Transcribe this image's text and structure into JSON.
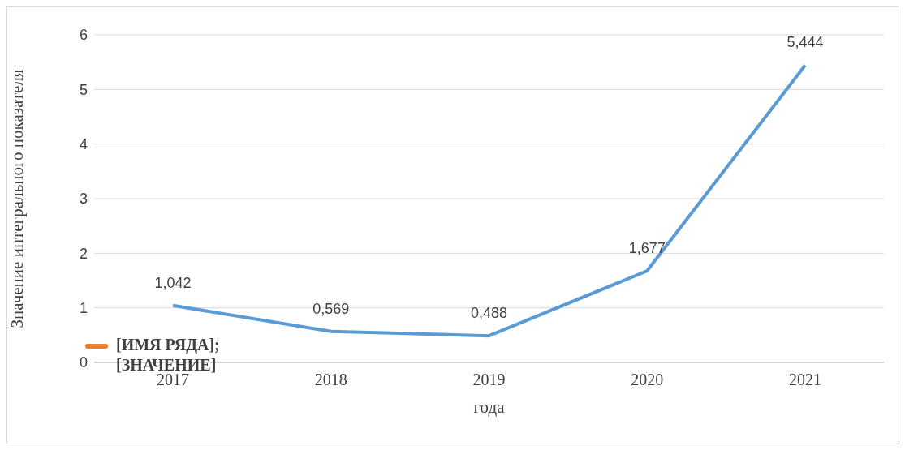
{
  "chart_data": {
    "type": "line",
    "xlabel": "года",
    "ylabel": "Значение интегрального показателя",
    "categories": [
      "2017",
      "2018",
      "2019",
      "2020",
      "2021"
    ],
    "series": [
      {
        "color": "#5b9bd5",
        "values": [
          1.042,
          0.569,
          0.488,
          1.677,
          5.444
        ]
      }
    ],
    "value_labels": [
      "1,042",
      "0,569",
      "0,488",
      "1,677",
      "5,444"
    ],
    "ylim": [
      0,
      6
    ],
    "yticks": [
      0,
      1,
      2,
      3,
      4,
      5,
      6
    ],
    "grid": "y",
    "marker": "none",
    "annotations": [
      "[ИМЯ РЯДА];\n[ЗНАЧЕНИЕ]"
    ]
  }
}
